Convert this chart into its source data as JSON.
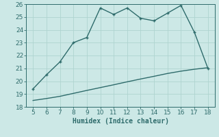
{
  "xlabel": "Humidex (Indice chaleur)",
  "ylabel": "",
  "x_main": [
    5,
    6,
    7,
    8,
    9,
    10,
    11,
    12,
    13,
    14,
    15,
    16,
    17,
    18
  ],
  "y_main": [
    19.4,
    20.5,
    21.5,
    23.0,
    23.4,
    25.7,
    25.2,
    25.7,
    24.9,
    24.7,
    25.3,
    25.9,
    23.8,
    21.0
  ],
  "x_line2": [
    5,
    6,
    7,
    8,
    9,
    10,
    11,
    12,
    13,
    14,
    15,
    16,
    17,
    18
  ],
  "y_line2": [
    18.5,
    18.65,
    18.82,
    19.05,
    19.28,
    19.5,
    19.72,
    19.95,
    20.17,
    20.38,
    20.6,
    20.78,
    20.93,
    21.05
  ],
  "line_color": "#2e6b6b",
  "bg_color": "#cce8e6",
  "grid_color": "#afd4d0",
  "xlim": [
    4.5,
    18.5
  ],
  "ylim": [
    18,
    26
  ],
  "xticks": [
    5,
    6,
    7,
    8,
    9,
    10,
    11,
    12,
    13,
    14,
    15,
    16,
    17,
    18
  ],
  "yticks": [
    18,
    19,
    20,
    21,
    22,
    23,
    24,
    25,
    26
  ],
  "markersize": 3.5,
  "linewidth": 1.0,
  "tick_fontsize": 6.5,
  "xlabel_fontsize": 7
}
